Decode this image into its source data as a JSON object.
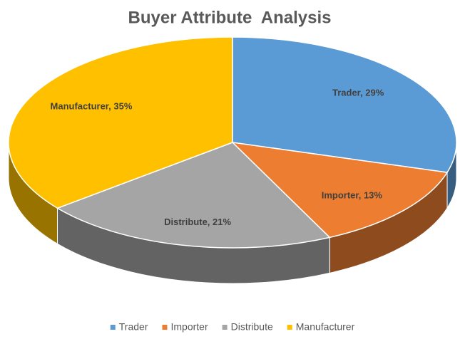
{
  "chart_data": {
    "type": "pie",
    "title": "Buyer Attribute  Analysis",
    "categories": [
      "Trader",
      "Importer",
      "Distribute",
      "Manufacturer"
    ],
    "values": [
      29,
      13,
      21,
      35
    ],
    "value_labels": [
      "Trader, 29%",
      "Importer, 13%",
      "Distribute, 21%",
      "Manufacturer, 35%"
    ],
    "colors": [
      "#5b9bd5",
      "#ed7d31",
      "#a5a5a5",
      "#ffc000"
    ],
    "legend": "bottom"
  }
}
